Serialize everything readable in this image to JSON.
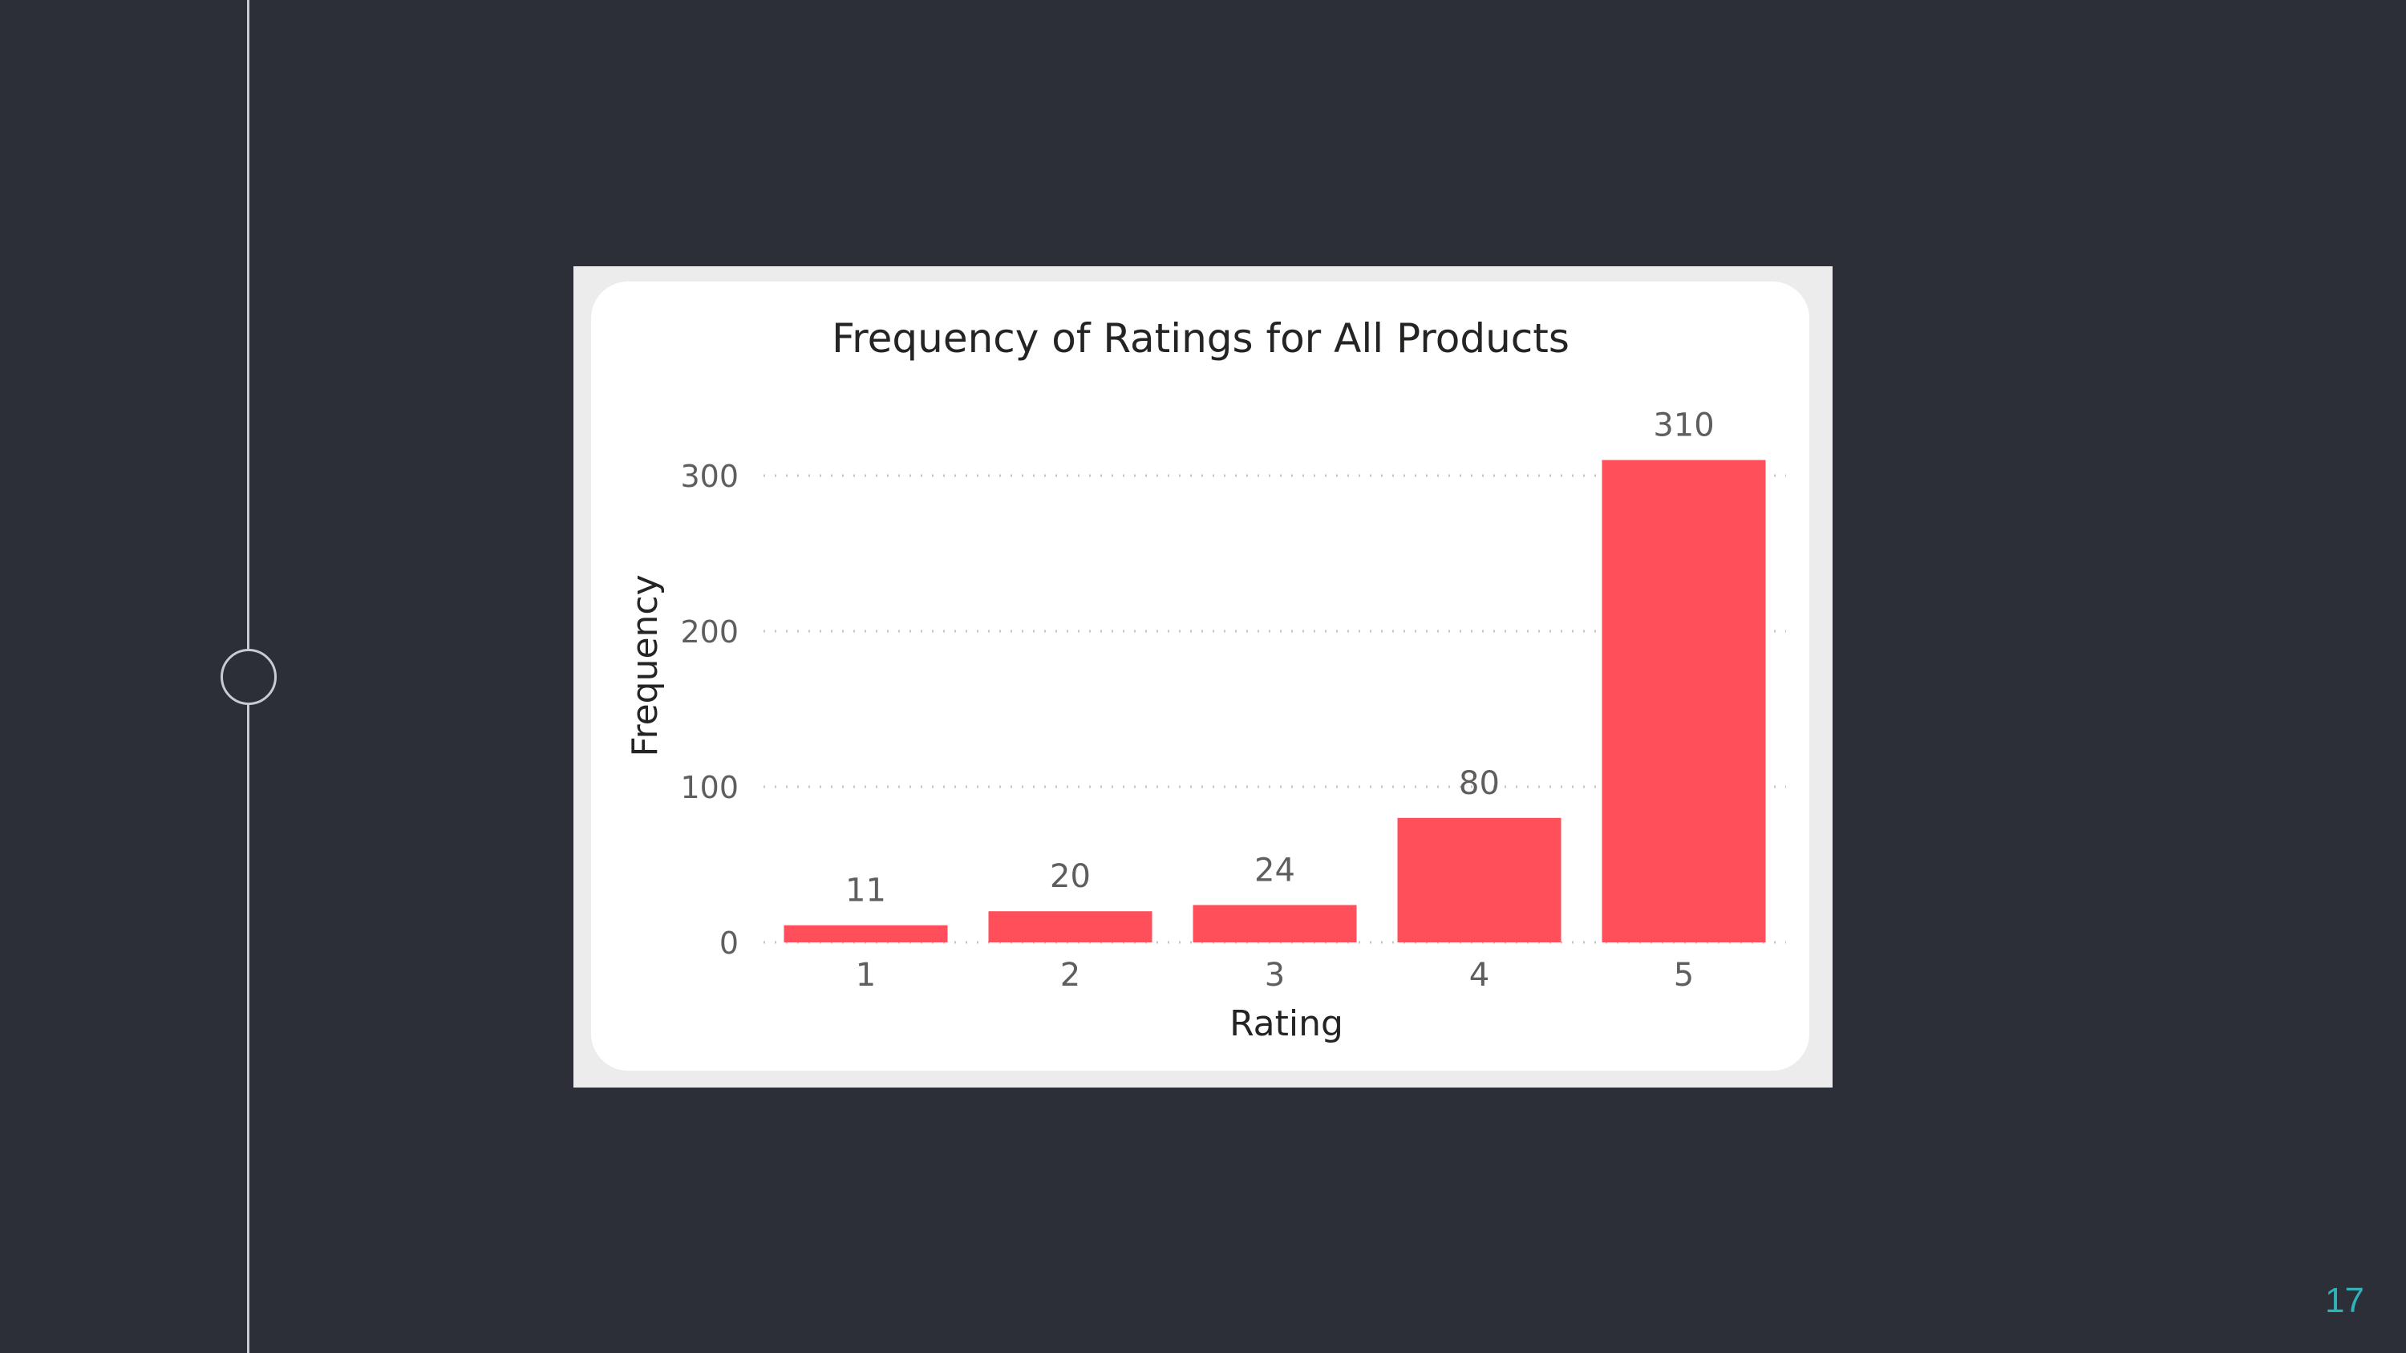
{
  "slide": {
    "page_number": "17"
  },
  "chart_data": {
    "type": "bar",
    "title": "Frequency of Ratings for All Products",
    "xlabel": "Rating",
    "ylabel": "Frequency",
    "categories": [
      "1",
      "2",
      "3",
      "4",
      "5"
    ],
    "values": [
      11,
      20,
      24,
      80,
      310
    ],
    "data_labels": [
      "11",
      "20",
      "24",
      "80",
      "310"
    ],
    "y_ticks": [
      0,
      100,
      200,
      300
    ],
    "y_tick_labels": [
      "0",
      "100",
      "200",
      "300"
    ],
    "ylim": [
      0,
      310
    ],
    "grid": true,
    "bar_color": "#ff4f5a"
  }
}
